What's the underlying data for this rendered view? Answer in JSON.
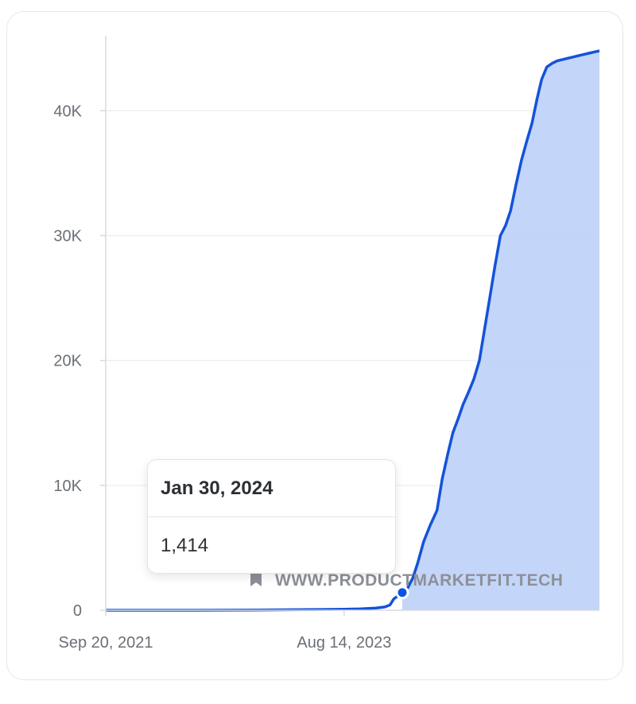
{
  "colors": {
    "line": "#1452d9",
    "area": "#bcd0f7",
    "point": "#0b55e6",
    "grid": "#eeeff1",
    "axis": "#d9dadd"
  },
  "tooltip": {
    "date": "Jan 30, 2024",
    "value": "1,414"
  },
  "watermark": {
    "text": "WWW.PRODUCTMARKETFIT.TECH",
    "icon": "bookmark-icon"
  },
  "chart_data": {
    "type": "area",
    "title": "",
    "xlabel": "",
    "ylabel": "",
    "x_ticks": [
      "Sep 20, 2021",
      "Aug 14, 2023"
    ],
    "y_ticks": [
      "0",
      "10K",
      "20K",
      "30K",
      "40K"
    ],
    "ylim": [
      0,
      46000
    ],
    "xlim": [
      "2021-09-20",
      "2025-08-25"
    ],
    "grid": true,
    "highlighted_point": {
      "x": "2024-01-30",
      "y": 1414
    },
    "series": [
      {
        "x": [
          "2021-09-20",
          "2022-06-01",
          "2022-12-01",
          "2023-06-01",
          "2023-08-14",
          "2023-10-01",
          "2023-11-15",
          "2023-12-10",
          "2023-12-25",
          "2024-01-05",
          "2024-01-15",
          "2024-01-30",
          "2024-02-15",
          "2024-03-01",
          "2024-03-15",
          "2024-04-01",
          "2024-04-20",
          "2024-05-10",
          "2024-05-25",
          "2024-06-10",
          "2024-06-25",
          "2024-07-10",
          "2024-07-25",
          "2024-08-10",
          "2024-08-25",
          "2024-09-10",
          "2024-09-25",
          "2024-10-10",
          "2024-10-25",
          "2024-11-10",
          "2024-11-25",
          "2024-12-10",
          "2024-12-25",
          "2025-01-10",
          "2025-01-25",
          "2025-02-10",
          "2025-02-25",
          "2025-03-10",
          "2025-03-25",
          "2025-04-10",
          "2025-04-25",
          "2025-05-10",
          "2025-05-25",
          "2025-06-10",
          "2025-06-25",
          "2025-07-10",
          "2025-07-25",
          "2025-08-10",
          "2025-08-25"
        ],
        "y": [
          0,
          0,
          20,
          60,
          80,
          110,
          180,
          260,
          420,
          900,
          1100,
          1414,
          1800,
          2600,
          3800,
          5500,
          6800,
          8000,
          10500,
          12500,
          14200,
          15300,
          16500,
          17500,
          18500,
          20000,
          22500,
          25000,
          27500,
          30000,
          30800,
          32000,
          34000,
          36000,
          37500,
          39000,
          41000,
          42500,
          43500,
          43800,
          44000,
          44100,
          44200,
          44300,
          44400,
          44500,
          44600,
          44700,
          44800
        ]
      }
    ]
  }
}
